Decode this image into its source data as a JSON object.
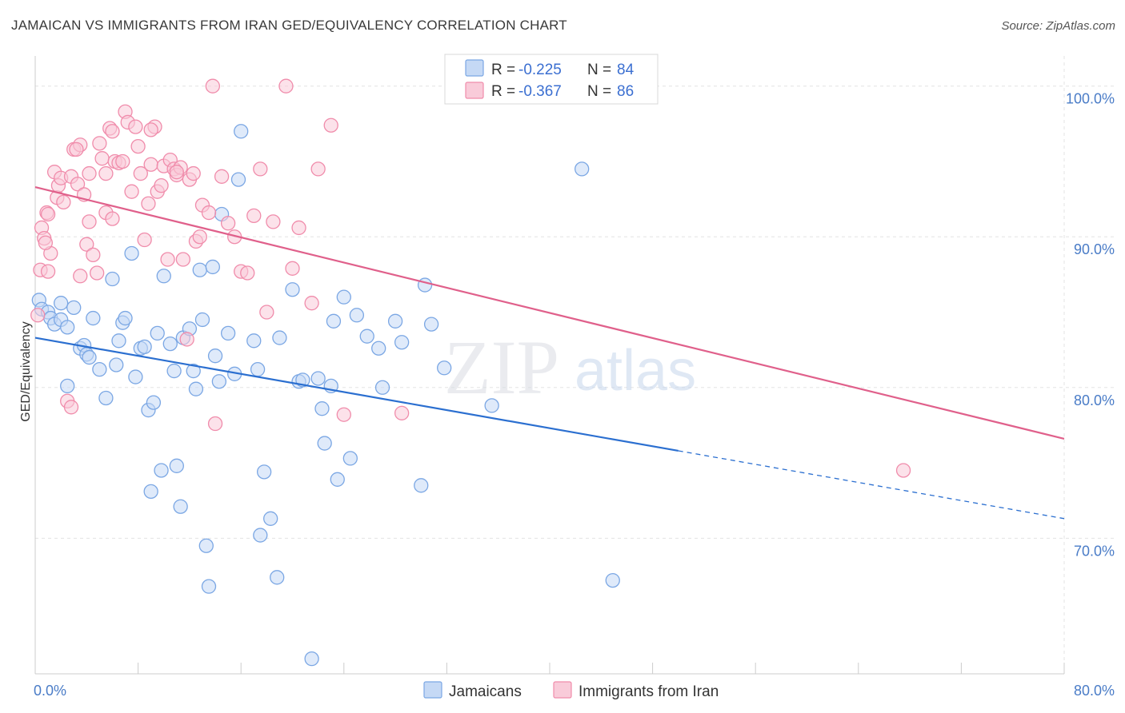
{
  "title": "JAMAICAN VS IMMIGRANTS FROM IRAN GED/EQUIVALENCY CORRELATION CHART",
  "source": "Source: ZipAtlas.com",
  "watermark": {
    "zip": "ZIP",
    "atlas": "atlas"
  },
  "chart_data": {
    "type": "scatter",
    "ylabel": "GED/Equivalency",
    "xlim": [
      0,
      80
    ],
    "ylim": [
      61,
      102
    ],
    "x_tick_labels": [
      "0.0%",
      "80.0%"
    ],
    "y_ticks": [
      {
        "value": 100,
        "label": "100.0%"
      },
      {
        "value": 90,
        "label": "90.0%"
      },
      {
        "value": 80,
        "label": "80.0%"
      },
      {
        "value": 70,
        "label": "70.0%"
      }
    ],
    "grid": true,
    "legend_stats": [
      {
        "r_label": "R = ",
        "r_value": "-0.225",
        "n_label": "N = ",
        "n_value": "84"
      },
      {
        "r_label": "R = ",
        "r_value": "-0.367",
        "n_label": "N = ",
        "n_value": "86"
      }
    ],
    "series": [
      {
        "name": "Jamaicans",
        "color": "#7ba7e4",
        "fill": "#c5d9f5",
        "line_color": "#2b6fd0",
        "trend": {
          "x0": 0,
          "y0": 83.3,
          "x1": 50,
          "y1": 75.8,
          "dash_to_x": 80,
          "dash_to_y": 71.3
        },
        "points": [
          [
            0.3,
            85.8
          ],
          [
            0.5,
            85.2
          ],
          [
            1.0,
            85.0
          ],
          [
            1.2,
            84.6
          ],
          [
            1.5,
            84.2
          ],
          [
            2.0,
            84.5
          ],
          [
            2.5,
            84.0
          ],
          [
            3.0,
            85.3
          ],
          [
            3.5,
            82.6
          ],
          [
            3.8,
            82.8
          ],
          [
            4.0,
            82.2
          ],
          [
            4.2,
            82.0
          ],
          [
            2.5,
            80.1
          ],
          [
            4.5,
            84.6
          ],
          [
            5.0,
            81.2
          ],
          [
            5.5,
            79.3
          ],
          [
            6.0,
            87.2
          ],
          [
            6.5,
            83.1
          ],
          [
            6.8,
            84.3
          ],
          [
            7.0,
            84.6
          ],
          [
            7.5,
            88.9
          ],
          [
            7.8,
            80.7
          ],
          [
            8.2,
            82.6
          ],
          [
            8.5,
            82.7
          ],
          [
            8.8,
            78.5
          ],
          [
            9.0,
            73.1
          ],
          [
            9.5,
            83.6
          ],
          [
            9.8,
            74.5
          ],
          [
            10.0,
            87.4
          ],
          [
            10.5,
            82.9
          ],
          [
            10.8,
            81.1
          ],
          [
            11.0,
            74.8
          ],
          [
            11.3,
            72.1
          ],
          [
            11.5,
            83.3
          ],
          [
            12.0,
            83.9
          ],
          [
            12.3,
            81.1
          ],
          [
            12.5,
            79.9
          ],
          [
            12.8,
            87.8
          ],
          [
            13.0,
            84.5
          ],
          [
            13.3,
            69.5
          ],
          [
            13.5,
            66.8
          ],
          [
            13.8,
            88.0
          ],
          [
            14.0,
            82.1
          ],
          [
            14.3,
            80.4
          ],
          [
            14.5,
            91.5
          ],
          [
            15.0,
            83.6
          ],
          [
            15.5,
            80.9
          ],
          [
            15.8,
            93.8
          ],
          [
            16.0,
            97.0
          ],
          [
            17.0,
            83.1
          ],
          [
            17.3,
            81.2
          ],
          [
            17.5,
            70.2
          ],
          [
            17.8,
            74.4
          ],
          [
            18.3,
            71.3
          ],
          [
            18.8,
            67.4
          ],
          [
            19.0,
            83.3
          ],
          [
            20.0,
            86.5
          ],
          [
            20.5,
            80.4
          ],
          [
            20.8,
            80.5
          ],
          [
            21.5,
            62.0
          ],
          [
            22.0,
            80.6
          ],
          [
            22.3,
            78.6
          ],
          [
            22.5,
            76.3
          ],
          [
            23.0,
            80.1
          ],
          [
            23.2,
            84.4
          ],
          [
            23.5,
            73.9
          ],
          [
            24.0,
            86.0
          ],
          [
            24.5,
            75.3
          ],
          [
            25.0,
            84.8
          ],
          [
            25.8,
            83.4
          ],
          [
            26.7,
            82.6
          ],
          [
            27.0,
            80.0
          ],
          [
            28.0,
            84.4
          ],
          [
            28.5,
            83.0
          ],
          [
            30.0,
            73.5
          ],
          [
            30.3,
            86.8
          ],
          [
            30.8,
            84.2
          ],
          [
            31.8,
            81.3
          ],
          [
            35.5,
            78.8
          ],
          [
            42.5,
            94.5
          ],
          [
            44.9,
            67.2
          ],
          [
            2.0,
            85.6
          ],
          [
            6.3,
            81.5
          ],
          [
            9.2,
            79.0
          ]
        ]
      },
      {
        "name": "Immigrants from Iran",
        "color": "#f08cab",
        "fill": "#f9cbd9",
        "line_color": "#e0608b",
        "trend": {
          "x0": 0,
          "y0": 93.3,
          "x1": 80,
          "y1": 76.6
        },
        "points": [
          [
            0.2,
            84.8
          ],
          [
            0.4,
            87.8
          ],
          [
            0.5,
            90.6
          ],
          [
            0.7,
            89.9
          ],
          [
            0.9,
            91.6
          ],
          [
            1.0,
            91.5
          ],
          [
            1.2,
            88.9
          ],
          [
            1.5,
            94.3
          ],
          [
            1.7,
            92.6
          ],
          [
            1.8,
            93.4
          ],
          [
            2.0,
            93.9
          ],
          [
            2.2,
            92.3
          ],
          [
            2.5,
            79.1
          ],
          [
            2.8,
            94.0
          ],
          [
            3.0,
            95.8
          ],
          [
            3.3,
            93.5
          ],
          [
            3.5,
            96.1
          ],
          [
            3.8,
            92.8
          ],
          [
            4.0,
            89.5
          ],
          [
            4.2,
            94.2
          ],
          [
            4.5,
            88.8
          ],
          [
            4.8,
            87.6
          ],
          [
            5.0,
            96.2
          ],
          [
            5.2,
            95.2
          ],
          [
            5.5,
            91.6
          ],
          [
            5.8,
            97.2
          ],
          [
            6.0,
            97.0
          ],
          [
            6.2,
            95.0
          ],
          [
            6.5,
            94.9
          ],
          [
            6.8,
            95.0
          ],
          [
            7.0,
            98.3
          ],
          [
            7.2,
            97.6
          ],
          [
            7.5,
            93.0
          ],
          [
            7.8,
            97.3
          ],
          [
            8.0,
            96.0
          ],
          [
            8.2,
            94.2
          ],
          [
            8.5,
            89.8
          ],
          [
            8.8,
            92.2
          ],
          [
            9.0,
            94.8
          ],
          [
            9.3,
            97.3
          ],
          [
            9.5,
            93.0
          ],
          [
            9.8,
            93.4
          ],
          [
            10.0,
            94.7
          ],
          [
            10.3,
            88.5
          ],
          [
            10.5,
            95.1
          ],
          [
            10.8,
            94.5
          ],
          [
            11.0,
            94.1
          ],
          [
            11.3,
            94.6
          ],
          [
            11.5,
            88.5
          ],
          [
            11.8,
            83.2
          ],
          [
            12.0,
            93.8
          ],
          [
            12.3,
            94.2
          ],
          [
            12.5,
            89.7
          ],
          [
            12.8,
            90.0
          ],
          [
            13.0,
            92.1
          ],
          [
            13.5,
            91.6
          ],
          [
            13.8,
            100.0
          ],
          [
            14.0,
            77.6
          ],
          [
            14.5,
            94.0
          ],
          [
            15.0,
            90.9
          ],
          [
            15.5,
            90.0
          ],
          [
            16.0,
            87.7
          ],
          [
            16.5,
            87.6
          ],
          [
            17.0,
            91.4
          ],
          [
            17.5,
            94.5
          ],
          [
            18.0,
            85.0
          ],
          [
            18.5,
            91.0
          ],
          [
            19.5,
            100.0
          ],
          [
            20.0,
            87.9
          ],
          [
            20.5,
            90.6
          ],
          [
            21.5,
            85.6
          ],
          [
            22.0,
            94.5
          ],
          [
            23.0,
            97.4
          ],
          [
            24.0,
            78.2
          ],
          [
            2.8,
            78.7
          ],
          [
            3.5,
            87.4
          ],
          [
            4.2,
            91.0
          ],
          [
            1.0,
            87.7
          ],
          [
            5.5,
            94.2
          ],
          [
            6.0,
            91.2
          ],
          [
            9.0,
            97.1
          ],
          [
            11.0,
            94.3
          ],
          [
            28.5,
            78.3
          ],
          [
            67.5,
            74.5
          ],
          [
            0.8,
            89.6
          ],
          [
            3.2,
            95.8
          ]
        ]
      }
    ]
  }
}
